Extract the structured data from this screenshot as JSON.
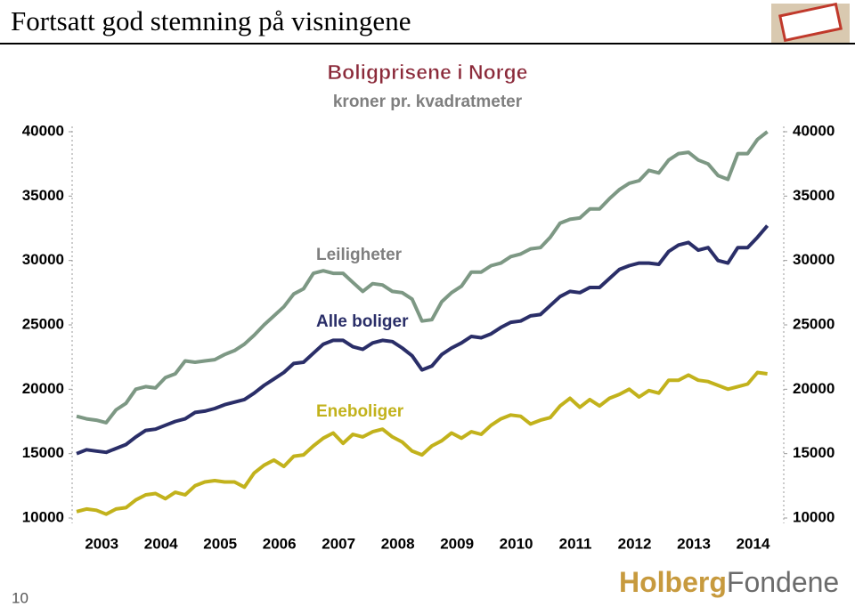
{
  "slide": {
    "title": "Fortsatt god stemning på visningene",
    "page_number": "10",
    "logo": [
      "Holberg",
      "Fondene"
    ]
  },
  "chart_data": {
    "type": "line",
    "title": "Boligprisene i Norge",
    "subtitle": "kroner pr. kvadratmeter",
    "categories": [
      null,
      null,
      null,
      "2003",
      null,
      null,
      null,
      null,
      null,
      "2004",
      null,
      null,
      null,
      null,
      null,
      "2005",
      null,
      null,
      null,
      null,
      null,
      "2006",
      null,
      null,
      null,
      null,
      null,
      "2007",
      null,
      null,
      null,
      null,
      null,
      "2008",
      null,
      null,
      null,
      null,
      null,
      "2009",
      null,
      null,
      null,
      null,
      null,
      "2010",
      null,
      null,
      null,
      null,
      null,
      "2011",
      null,
      null,
      null,
      null,
      null,
      "2012",
      null,
      null,
      null,
      null,
      null,
      "2013",
      null,
      null,
      null,
      null,
      null,
      "2014",
      null
    ],
    "series": [
      {
        "name": "Leiligheter",
        "color": "#7d9884",
        "values": [
          17900,
          17700,
          17600,
          17400,
          18400,
          18900,
          20000,
          20200,
          20100,
          20900,
          21200,
          22200,
          22100,
          22200,
          22300,
          22700,
          23000,
          23500,
          24200,
          25000,
          25700,
          26400,
          27400,
          27800,
          29000,
          29200,
          29000,
          29000,
          28300,
          27600,
          28200,
          28100,
          27600,
          27500,
          27000,
          25300,
          25400,
          26800,
          27500,
          28000,
          29100,
          29100,
          29600,
          29800,
          30300,
          30500,
          30900,
          31000,
          31800,
          32900,
          33200,
          33300,
          34000,
          34000,
          34800,
          35500,
          36000,
          36200,
          37000,
          36800,
          37800,
          38300,
          38400,
          37800,
          37500,
          36600,
          36300,
          38300,
          38300,
          39400,
          40000
        ]
      },
      {
        "name": "Alle boliger",
        "color": "#2a2e68",
        "values": [
          15000,
          15300,
          15200,
          15100,
          15400,
          15700,
          16300,
          16800,
          16900,
          17200,
          17500,
          17700,
          18200,
          18300,
          18500,
          18800,
          19000,
          19200,
          19700,
          20300,
          20800,
          21300,
          22000,
          22100,
          22800,
          23500,
          23800,
          23800,
          23300,
          23100,
          23600,
          23800,
          23700,
          23200,
          22600,
          21500,
          21800,
          22700,
          23200,
          23600,
          24100,
          24000,
          24300,
          24800,
          25200,
          25300,
          25700,
          25800,
          26500,
          27200,
          27600,
          27500,
          27900,
          27900,
          28600,
          29300,
          29600,
          29800,
          29800,
          29700,
          30700,
          31200,
          31400,
          30800,
          31000,
          30000,
          29800,
          31000,
          31000,
          31800,
          32700
        ]
      },
      {
        "name": "Eneboliger",
        "color": "#c2b21c",
        "values": [
          10500,
          10700,
          10600,
          10300,
          10700,
          10800,
          11400,
          11800,
          11900,
          11500,
          12000,
          11800,
          12500,
          12800,
          12900,
          12800,
          12800,
          12400,
          13500,
          14100,
          14500,
          14000,
          14800,
          14900,
          15600,
          16200,
          16600,
          15800,
          16500,
          16300,
          16700,
          16900,
          16300,
          15900,
          15200,
          14900,
          15600,
          16000,
          16600,
          16200,
          16700,
          16500,
          17200,
          17700,
          18000,
          17900,
          17300,
          17600,
          17800,
          18700,
          19300,
          18600,
          19200,
          18700,
          19300,
          19600,
          20000,
          19400,
          19900,
          19700,
          20700,
          20700,
          21100,
          20700,
          20600,
          20300,
          20000,
          20200,
          20400,
          21300,
          21200
        ]
      }
    ],
    "ylim": [
      10000,
      40000
    ],
    "yticks": [
      10000,
      15000,
      20000,
      25000,
      30000,
      35000,
      40000
    ],
    "y2lim": [
      10000,
      40000
    ],
    "y2ticks": [
      10000,
      15000,
      20000,
      25000,
      30000,
      35000,
      40000
    ],
    "grid": false
  }
}
